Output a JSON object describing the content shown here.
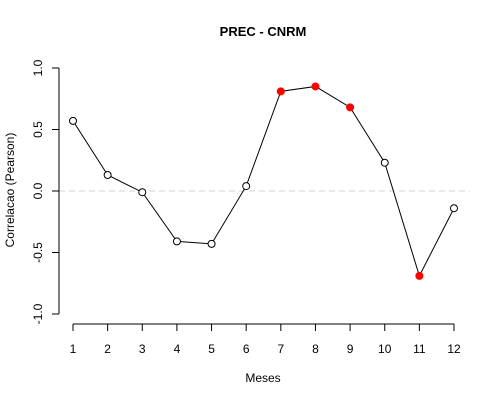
{
  "chart_data": {
    "type": "line",
    "title": "PREC - CNRM",
    "xlabel": "Meses",
    "ylabel": "Correlacao (Pearson)",
    "x": [
      1,
      2,
      3,
      4,
      5,
      6,
      7,
      8,
      9,
      10,
      11,
      12
    ],
    "xticks": [
      "1",
      "2",
      "3",
      "4",
      "5",
      "6",
      "7",
      "8",
      "9",
      "10",
      "11",
      "12"
    ],
    "yticks": [
      "-1.0",
      "-0.5",
      "0.0",
      "0.5",
      "1.0"
    ],
    "ytick_values": [
      -1.0,
      -0.5,
      0.0,
      0.5,
      1.0
    ],
    "xlim": [
      1,
      12
    ],
    "ylim": [
      -1.0,
      1.0
    ],
    "series": [
      {
        "values": [
          0.57,
          0.13,
          -0.01,
          -0.41,
          -0.43,
          0.04,
          0.81,
          0.85,
          0.68,
          0.23,
          -0.69,
          -0.14
        ],
        "highlighted": [
          false,
          false,
          false,
          false,
          false,
          false,
          true,
          true,
          true,
          false,
          true,
          false
        ]
      }
    ],
    "reference_line": {
      "y": 0.0,
      "style": "dashed"
    },
    "grid": false,
    "colors": {
      "line": "#000000",
      "point_open": "#000000",
      "point_highlight": "#ff0000",
      "reference_line": "#d3d3d3"
    }
  }
}
